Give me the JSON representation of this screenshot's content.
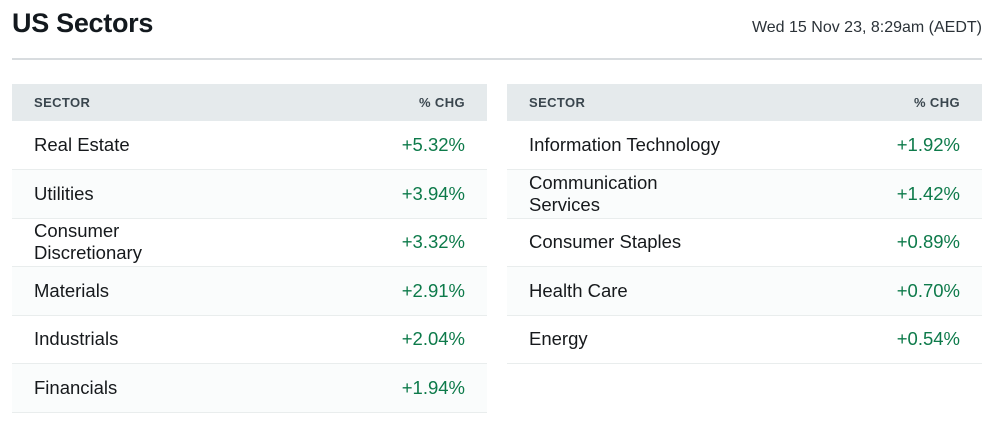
{
  "header": {
    "title": "US Sectors",
    "timestamp": "Wed 15 Nov 23, 8:29am (AEDT)"
  },
  "columns": {
    "sector": "SECTOR",
    "chg": "% CHG"
  },
  "colors": {
    "positive": "#0d7a4a",
    "header_bg": "#e5eaec",
    "header_text": "#3a464e"
  },
  "tables": {
    "left": {
      "rows": [
        {
          "name": "Real Estate",
          "chg": "+5.32%"
        },
        {
          "name": "Utilities",
          "chg": "+3.94%"
        },
        {
          "name": "Consumer Discretionary",
          "chg": "+3.32%"
        },
        {
          "name": "Materials",
          "chg": "+2.91%"
        },
        {
          "name": "Industrials",
          "chg": "+2.04%"
        },
        {
          "name": "Financials",
          "chg": "+1.94%"
        }
      ]
    },
    "right": {
      "rows": [
        {
          "name": "Information Technology",
          "chg": "+1.92%"
        },
        {
          "name": "Communication Services",
          "chg": "+1.42%"
        },
        {
          "name": "Consumer Staples",
          "chg": "+0.89%"
        },
        {
          "name": "Health Care",
          "chg": "+0.70%"
        },
        {
          "name": "Energy",
          "chg": "+0.54%"
        }
      ]
    }
  }
}
